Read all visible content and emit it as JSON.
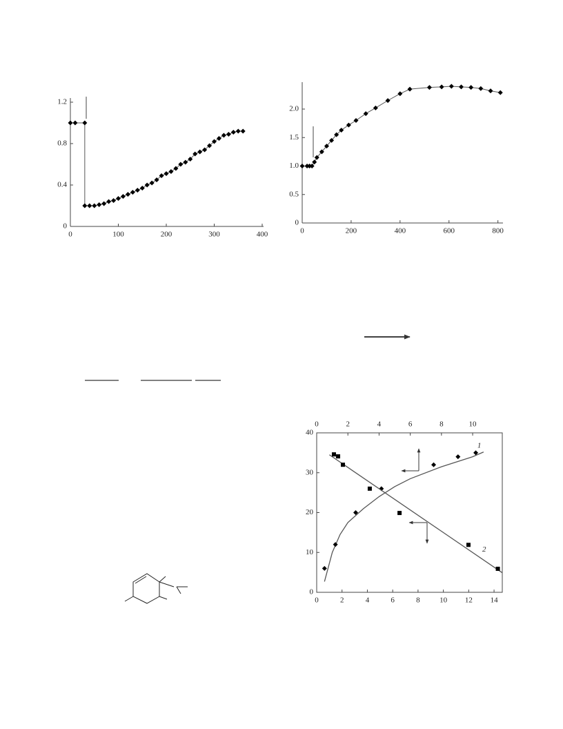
{
  "chart_data": [
    {
      "type": "line",
      "x": [
        0,
        10,
        30,
        30,
        40,
        50,
        60,
        70,
        80,
        90,
        100,
        110,
        120,
        130,
        140,
        150,
        160,
        170,
        180,
        190,
        200,
        210,
        220,
        230,
        240,
        250,
        260,
        270,
        280,
        290,
        300,
        310,
        320,
        330,
        340,
        350,
        360
      ],
      "series": [
        {
          "color": "#000000",
          "marker": "diamond",
          "values": [
            1.0,
            1.0,
            1.0,
            0.2,
            0.2,
            0.2,
            0.21,
            0.22,
            0.24,
            0.25,
            0.27,
            0.29,
            0.31,
            0.33,
            0.35,
            0.37,
            0.4,
            0.42,
            0.45,
            0.49,
            0.51,
            0.53,
            0.56,
            0.6,
            0.62,
            0.65,
            0.7,
            0.72,
            0.74,
            0.78,
            0.82,
            0.85,
            0.88,
            0.89,
            0.91,
            0.92,
            0.92
          ]
        }
      ],
      "xlim": [
        0,
        400
      ],
      "xticks": [
        0,
        100,
        200,
        300,
        400
      ],
      "ylim": [
        0,
        1.2
      ],
      "yticks": [
        0,
        0.4,
        0.8,
        1.2
      ]
    },
    {
      "type": "line",
      "x": [
        0,
        20,
        30,
        40,
        50,
        60,
        80,
        100,
        120,
        140,
        160,
        190,
        220,
        260,
        300,
        350,
        400,
        440,
        520,
        570,
        610,
        650,
        690,
        730,
        770,
        810
      ],
      "series": [
        {
          "color": "#000000",
          "marker": "diamond",
          "values": [
            1.0,
            1.0,
            1.0,
            1.0,
            1.07,
            1.15,
            1.25,
            1.35,
            1.45,
            1.55,
            1.63,
            1.72,
            1.8,
            1.92,
            2.02,
            2.15,
            2.27,
            2.35,
            2.38,
            2.39,
            2.4,
            2.39,
            2.38,
            2.36,
            2.32,
            2.29
          ]
        }
      ],
      "xlim": [
        0,
        815
      ],
      "xticks": [
        0,
        200,
        400,
        600,
        800
      ],
      "ylim": [
        0,
        2.4
      ],
      "yticks": [
        0,
        0.5,
        {
          "value": 1,
          "label": "1.0"
        },
        1.5,
        {
          "value": 2,
          "label": "2.0"
        }
      ]
    },
    {
      "type": "scatter",
      "series": [
        {
          "name": "1",
          "color": "#000000",
          "marker": "diamond",
          "xaxis": "x2",
          "x": [
            0.5,
            1.2,
            2.5,
            4.15,
            7.5,
            9.06,
            10.2
          ],
          "values": [
            6,
            12,
            20,
            26,
            32,
            34,
            35
          ],
          "fit_x": [
            0.5,
            1,
            1.5,
            2,
            3,
            4,
            5,
            6,
            8,
            10,
            10.7
          ],
          "fit_values": [
            2.7,
            10,
            14.5,
            17.5,
            21,
            24,
            26.5,
            28.5,
            31.5,
            34,
            35.2
          ]
        },
        {
          "name": "2",
          "color": "#000000",
          "marker": "square",
          "xaxis": "x",
          "x": [
            1.36,
            1.69,
            2.07,
            4.19,
            6.54,
            11.98,
            14.3
          ],
          "values": [
            34.6,
            34.1,
            32,
            26,
            19.9,
            11.9,
            5.9
          ],
          "fit_x": [
            1.0,
            14.65
          ],
          "fit_values": [
            34.5,
            4.9
          ]
        }
      ],
      "xlim": [
        0,
        14.65
      ],
      "xticks": [
        0,
        2,
        4,
        6,
        8,
        10,
        12,
        14
      ],
      "x2lim": [
        0,
        11.9
      ],
      "x2ticks": [
        0,
        2,
        4,
        6,
        8,
        10
      ],
      "ylim": [
        0,
        40
      ],
      "yticks": [
        0,
        10,
        20,
        30,
        40
      ]
    }
  ]
}
